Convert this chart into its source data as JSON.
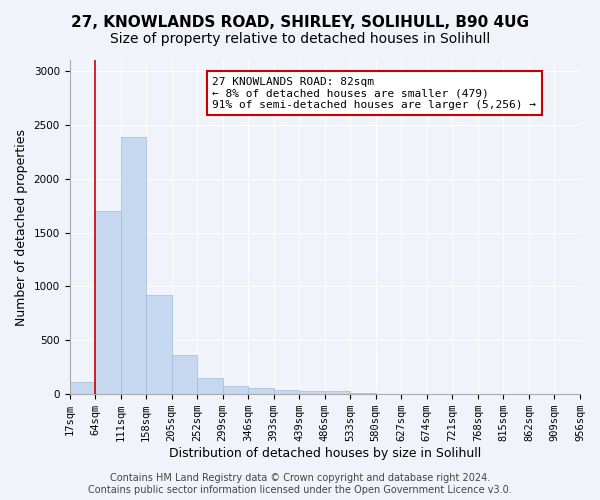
{
  "title_line1": "27, KNOWLANDS ROAD, SHIRLEY, SOLIHULL, B90 4UG",
  "title_line2": "Size of property relative to detached houses in Solihull",
  "xlabel": "Distribution of detached houses by size in Solihull",
  "ylabel": "Number of detached properties",
  "bar_color": "#c5d8f0",
  "bar_edge_color": "#a0bcd8",
  "bar_values": [
    110,
    1700,
    2390,
    920,
    360,
    155,
    80,
    55,
    40,
    30,
    30,
    10,
    5,
    3,
    2,
    1,
    1,
    0,
    0,
    0
  ],
  "bin_labels": [
    "17sqm",
    "64sqm",
    "111sqm",
    "158sqm",
    "205sqm",
    "252sqm",
    "299sqm",
    "346sqm",
    "393sqm",
    "439sqm",
    "486sqm",
    "533sqm",
    "580sqm",
    "627sqm",
    "674sqm",
    "721sqm",
    "768sqm",
    "815sqm",
    "862sqm",
    "909sqm",
    "956sqm"
  ],
  "ylim": [
    0,
    3100
  ],
  "yticks": [
    0,
    500,
    1000,
    1500,
    2000,
    2500,
    3000
  ],
  "vline_x": 1,
  "vline_color": "#cc0000",
  "annotation_text": "27 KNOWLANDS ROAD: 82sqm\n← 8% of detached houses are smaller (479)\n91% of semi-detached houses are larger (5,256) →",
  "annotation_box_color": "#ffffff",
  "annotation_box_edge_color": "#cc0000",
  "footer_line1": "Contains HM Land Registry data © Crown copyright and database right 2024.",
  "footer_line2": "Contains public sector information licensed under the Open Government Licence v3.0.",
  "background_color": "#f0f4fa",
  "grid_color": "#ffffff",
  "title_fontsize": 11,
  "subtitle_fontsize": 10,
  "label_fontsize": 9,
  "tick_fontsize": 7.5,
  "footer_fontsize": 7
}
